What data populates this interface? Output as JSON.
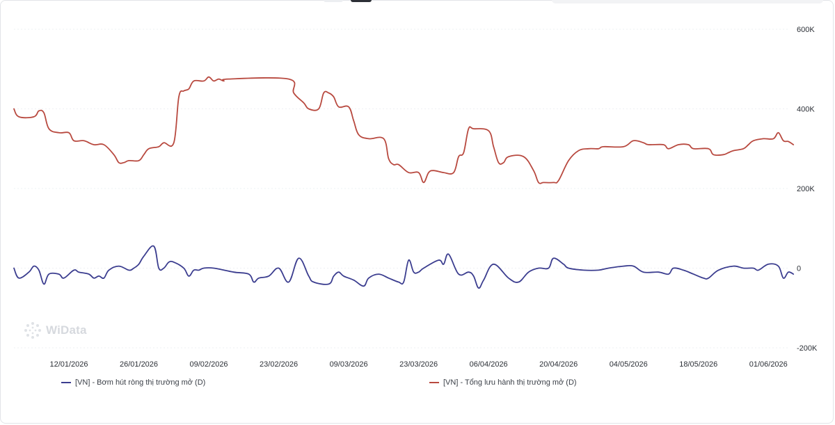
{
  "watermark": {
    "text": "WiData",
    "icon": "dots-logo-icon"
  },
  "chart_data": {
    "type": "line",
    "ylim": [
      -200000,
      600000
    ],
    "y_ticks": [
      -200000,
      0,
      200000,
      400000,
      600000
    ],
    "y_tick_labels": [
      "-200K",
      "0",
      "200K",
      "400K",
      "600K"
    ],
    "x_range": [
      "2026-01-01",
      "2026-06-05"
    ],
    "x_ticks": [
      "2026-01-12",
      "2026-01-26",
      "2026-02-09",
      "2026-02-23",
      "2026-03-09",
      "2026-03-23",
      "2026-04-06",
      "2026-04-20",
      "2026-05-04",
      "2026-05-18",
      "2026-06-01"
    ],
    "x_tick_labels": [
      "12/01/2026",
      "26/01/2026",
      "09/02/2026",
      "23/02/2026",
      "09/03/2026",
      "23/03/2026",
      "06/04/2026",
      "20/04/2026",
      "04/05/2026",
      "18/05/2026",
      "01/06/2026"
    ],
    "grid": true,
    "legend_position": "bottom",
    "series": [
      {
        "name": "[VN] - Bơm hút ròng thị trường mở (D)",
        "color": "#3b3d8f",
        "points": [
          [
            "2026-01-01",
            0
          ],
          [
            "2026-01-02",
            -25000
          ],
          [
            "2026-01-04",
            -10000
          ],
          [
            "2026-01-05",
            5000
          ],
          [
            "2026-01-06",
            -5000
          ],
          [
            "2026-01-07",
            -40000
          ],
          [
            "2026-01-08",
            -15000
          ],
          [
            "2026-01-10",
            -15000
          ],
          [
            "2026-01-11",
            -25000
          ],
          [
            "2026-01-13",
            -5000
          ],
          [
            "2026-01-14",
            -10000
          ],
          [
            "2026-01-16",
            -15000
          ],
          [
            "2026-01-17",
            -25000
          ],
          [
            "2026-01-18",
            -20000
          ],
          [
            "2026-01-19",
            -25000
          ],
          [
            "2026-01-20",
            -5000
          ],
          [
            "2026-01-22",
            5000
          ],
          [
            "2026-01-24",
            -5000
          ],
          [
            "2026-01-25",
            0
          ],
          [
            "2026-01-26",
            10000
          ],
          [
            "2026-01-27",
            30000
          ],
          [
            "2026-01-29",
            55000
          ],
          [
            "2026-01-30",
            0
          ],
          [
            "2026-01-31",
            0
          ],
          [
            "2026-02-01",
            15000
          ],
          [
            "2026-02-02",
            15000
          ],
          [
            "2026-02-04",
            0
          ],
          [
            "2026-02-05",
            -20000
          ],
          [
            "2026-02-06",
            -5000
          ],
          [
            "2026-02-07",
            -5000
          ],
          [
            "2026-02-08",
            0
          ],
          [
            "2026-02-10",
            0
          ],
          [
            "2026-02-14",
            -10000
          ],
          [
            "2026-02-17",
            -15000
          ],
          [
            "2026-02-18",
            -35000
          ],
          [
            "2026-02-19",
            -25000
          ],
          [
            "2026-02-21",
            -20000
          ],
          [
            "2026-02-23",
            0
          ],
          [
            "2026-02-25",
            -35000
          ],
          [
            "2026-02-27",
            25000
          ],
          [
            "2026-03-01",
            -20000
          ],
          [
            "2026-03-02",
            -35000
          ],
          [
            "2026-03-05",
            -40000
          ],
          [
            "2026-03-06",
            -20000
          ],
          [
            "2026-03-07",
            -10000
          ],
          [
            "2026-03-08",
            -20000
          ],
          [
            "2026-03-10",
            -30000
          ],
          [
            "2026-03-12",
            -45000
          ],
          [
            "2026-03-13",
            -25000
          ],
          [
            "2026-03-15",
            -15000
          ],
          [
            "2026-03-17",
            -25000
          ],
          [
            "2026-03-19",
            -35000
          ],
          [
            "2026-03-20",
            -35000
          ],
          [
            "2026-03-21",
            20000
          ],
          [
            "2026-03-22",
            -10000
          ],
          [
            "2026-03-23",
            -10000
          ],
          [
            "2026-03-24",
            0
          ],
          [
            "2026-03-27",
            20000
          ],
          [
            "2026-03-28",
            10000
          ],
          [
            "2026-03-29",
            35000
          ],
          [
            "2026-03-31",
            -15000
          ],
          [
            "2026-04-02",
            -10000
          ],
          [
            "2026-04-03",
            -20000
          ],
          [
            "2026-04-04",
            -50000
          ],
          [
            "2026-04-05",
            -30000
          ],
          [
            "2026-04-07",
            10000
          ],
          [
            "2026-04-10",
            -25000
          ],
          [
            "2026-04-12",
            -35000
          ],
          [
            "2026-04-14",
            -10000
          ],
          [
            "2026-04-16",
            0
          ],
          [
            "2026-04-18",
            0
          ],
          [
            "2026-04-19",
            25000
          ],
          [
            "2026-04-21",
            10000
          ],
          [
            "2026-04-22",
            0
          ],
          [
            "2026-04-25",
            -5000
          ],
          [
            "2026-04-28",
            -5000
          ],
          [
            "2026-04-30",
            0
          ],
          [
            "2026-05-03",
            5000
          ],
          [
            "2026-05-05",
            5000
          ],
          [
            "2026-05-07",
            -10000
          ],
          [
            "2026-05-10",
            -10000
          ],
          [
            "2026-05-12",
            -15000
          ],
          [
            "2026-05-13",
            0
          ],
          [
            "2026-05-15",
            -5000
          ],
          [
            "2026-05-17",
            -15000
          ],
          [
            "2026-05-19",
            -25000
          ],
          [
            "2026-05-20",
            -25000
          ],
          [
            "2026-05-22",
            -5000
          ],
          [
            "2026-05-25",
            5000
          ],
          [
            "2026-05-27",
            0
          ],
          [
            "2026-05-29",
            0
          ],
          [
            "2026-05-30",
            -5000
          ],
          [
            "2026-06-01",
            10000
          ],
          [
            "2026-06-03",
            5000
          ],
          [
            "2026-06-04",
            -25000
          ],
          [
            "2026-06-05",
            -10000
          ],
          [
            "2026-06-06",
            -15000
          ]
        ]
      },
      {
        "name": "[VN] - Tổng lưu hành thị trường mở (D)",
        "color": "#b8493f",
        "points": [
          [
            "2026-01-01",
            400000
          ],
          [
            "2026-01-02",
            380000
          ],
          [
            "2026-01-05",
            380000
          ],
          [
            "2026-01-06",
            395000
          ],
          [
            "2026-01-07",
            390000
          ],
          [
            "2026-01-08",
            350000
          ],
          [
            "2026-01-10",
            340000
          ],
          [
            "2026-01-12",
            340000
          ],
          [
            "2026-01-13",
            320000
          ],
          [
            "2026-01-15",
            320000
          ],
          [
            "2026-01-17",
            310000
          ],
          [
            "2026-01-19",
            310000
          ],
          [
            "2026-01-21",
            285000
          ],
          [
            "2026-01-22",
            265000
          ],
          [
            "2026-01-23",
            265000
          ],
          [
            "2026-01-24",
            270000
          ],
          [
            "2026-01-26",
            270000
          ],
          [
            "2026-01-27",
            285000
          ],
          [
            "2026-01-28",
            300000
          ],
          [
            "2026-01-30",
            305000
          ],
          [
            "2026-01-31",
            315000
          ],
          [
            "2026-02-02",
            315000
          ],
          [
            "2026-02-03",
            430000
          ],
          [
            "2026-02-04",
            445000
          ],
          [
            "2026-02-05",
            450000
          ],
          [
            "2026-02-06",
            470000
          ],
          [
            "2026-02-08",
            470000
          ],
          [
            "2026-02-09",
            480000
          ],
          [
            "2026-02-10",
            470000
          ],
          [
            "2026-02-11",
            475000
          ],
          [
            "2026-02-12",
            470000
          ],
          [
            "2026-02-13",
            475000
          ],
          [
            "2026-02-25",
            475000
          ],
          [
            "2026-02-26",
            440000
          ],
          [
            "2026-02-28",
            415000
          ],
          [
            "2026-03-01",
            400000
          ],
          [
            "2026-03-03",
            400000
          ],
          [
            "2026-03-04",
            440000
          ],
          [
            "2026-03-05",
            440000
          ],
          [
            "2026-03-06",
            430000
          ],
          [
            "2026-03-07",
            405000
          ],
          [
            "2026-03-09",
            405000
          ],
          [
            "2026-03-10",
            370000
          ],
          [
            "2026-03-11",
            335000
          ],
          [
            "2026-03-13",
            325000
          ],
          [
            "2026-03-16",
            325000
          ],
          [
            "2026-03-17",
            275000
          ],
          [
            "2026-03-18",
            260000
          ],
          [
            "2026-03-19",
            260000
          ],
          [
            "2026-03-21",
            240000
          ],
          [
            "2026-03-23",
            240000
          ],
          [
            "2026-03-24",
            215000
          ],
          [
            "2026-03-25",
            240000
          ],
          [
            "2026-03-26",
            245000
          ],
          [
            "2026-03-28",
            240000
          ],
          [
            "2026-03-30",
            240000
          ],
          [
            "2026-03-31",
            280000
          ],
          [
            "2026-04-01",
            290000
          ],
          [
            "2026-04-02",
            350000
          ],
          [
            "2026-04-03",
            350000
          ],
          [
            "2026-04-06",
            345000
          ],
          [
            "2026-04-07",
            305000
          ],
          [
            "2026-04-08",
            265000
          ],
          [
            "2026-04-09",
            265000
          ],
          [
            "2026-04-10",
            280000
          ],
          [
            "2026-04-13",
            280000
          ],
          [
            "2026-04-15",
            245000
          ],
          [
            "2026-04-16",
            215000
          ],
          [
            "2026-04-17",
            215000
          ],
          [
            "2026-04-19",
            215000
          ],
          [
            "2026-04-20",
            220000
          ],
          [
            "2026-04-22",
            270000
          ],
          [
            "2026-04-24",
            295000
          ],
          [
            "2026-04-26",
            300000
          ],
          [
            "2026-04-28",
            300000
          ],
          [
            "2026-04-29",
            305000
          ],
          [
            "2026-05-03",
            305000
          ],
          [
            "2026-05-05",
            320000
          ],
          [
            "2026-05-07",
            315000
          ],
          [
            "2026-05-08",
            310000
          ],
          [
            "2026-05-11",
            310000
          ],
          [
            "2026-05-12",
            300000
          ],
          [
            "2026-05-14",
            310000
          ],
          [
            "2026-05-16",
            310000
          ],
          [
            "2026-05-17",
            300000
          ],
          [
            "2026-05-20",
            300000
          ],
          [
            "2026-05-21",
            285000
          ],
          [
            "2026-05-23",
            285000
          ],
          [
            "2026-05-24",
            290000
          ],
          [
            "2026-05-25",
            295000
          ],
          [
            "2026-05-27",
            300000
          ],
          [
            "2026-05-28",
            310000
          ],
          [
            "2026-05-29",
            320000
          ],
          [
            "2026-05-31",
            325000
          ],
          [
            "2026-06-02",
            325000
          ],
          [
            "2026-06-03",
            340000
          ],
          [
            "2026-06-04",
            320000
          ],
          [
            "2026-06-05",
            318000
          ],
          [
            "2026-06-06",
            310000
          ]
        ]
      }
    ]
  }
}
